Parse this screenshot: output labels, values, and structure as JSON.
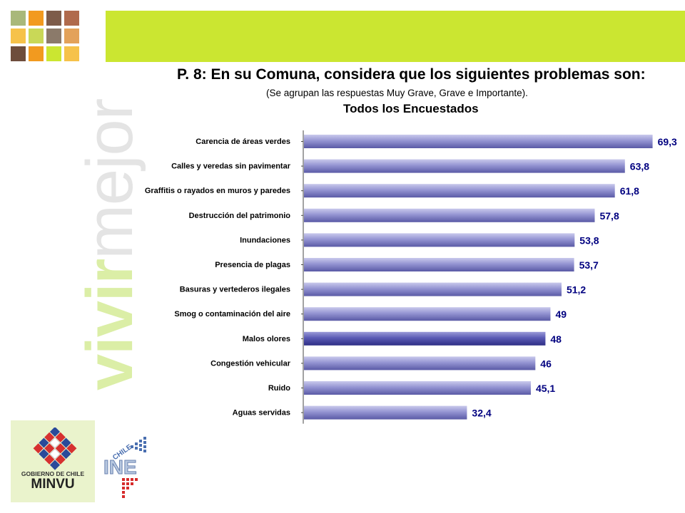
{
  "header": {
    "banner_color": "#cbe631",
    "photo_tile_colors": [
      "#a9b87a",
      "#f29a1f",
      "#7d5c4a",
      "#b06a4c",
      "#f6c24a",
      "#c9d857",
      "#8b7a6a",
      "#e3a25a",
      "#6e4d3c",
      "#f29a1f",
      "#cbe631",
      "#f6c24a"
    ]
  },
  "watermark": {
    "word1": "vivir",
    "word2": "mejor"
  },
  "title": "P. 8: En su Comuna, considera que los siguientes problemas son:",
  "subtitle": "(Se agrupan las respuestas Muy Grave, Grave e Importante).",
  "group_label": "Todos los Encuestados",
  "chart_data": {
    "type": "bar",
    "orientation": "horizontal",
    "categories": [
      "Carencia de áreas verdes",
      "Calles y veredas sin pavimentar",
      "Graffitis o rayados en muros y paredes",
      "Destrucción del patrimonio",
      "Inundaciones",
      "Presencia de plagas",
      "Basuras y vertederos ilegales",
      "Smog o contaminación del aire",
      "Malos olores",
      "Congestión vehicular",
      "Ruido",
      "Aguas servidas"
    ],
    "values": [
      69.3,
      63.8,
      61.8,
      57.8,
      53.8,
      53.7,
      51.2,
      49,
      48,
      46,
      45.1,
      32.4
    ],
    "value_labels": [
      "69,3",
      "63,8",
      "61,8",
      "57,8",
      "53,8",
      "53,7",
      "51,2",
      "49",
      "48",
      "46",
      "45,1",
      "32,4"
    ],
    "xlim": [
      0,
      70
    ],
    "bar_color": "#8f8fd0",
    "label_color": "#000080",
    "title": "",
    "xlabel": "",
    "ylabel": ""
  },
  "footer": {
    "minvu_caption": "GOBIERNO DE CHILE",
    "minvu_name": "MINVU",
    "ine_country": "CHILE",
    "ine_name": "INE"
  }
}
